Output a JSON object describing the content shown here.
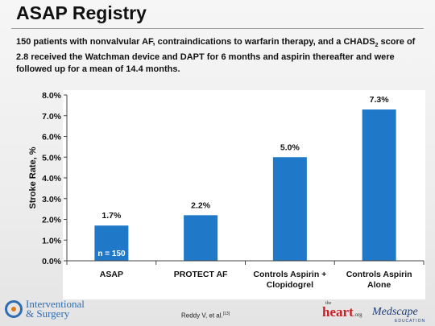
{
  "slide": {
    "title": "ASAP Registry",
    "subtitle_parts": {
      "p1": "150 patients with nonvalvular AF, contraindications to warfarin therapy, and a CHADS",
      "sub": "2",
      "p2": " score of 2.8 received the Watchman device and DAPT for 6 months and aspirin thereafter and were followed up for a mean of 14.4 months."
    }
  },
  "chart_data": {
    "type": "bar",
    "categories": [
      "ASAP",
      "PROTECT AF",
      "Controls Aspirin + Clopidogrel",
      "Controls Aspirin Alone"
    ],
    "category_lines": [
      [
        "ASAP"
      ],
      [
        "PROTECT AF"
      ],
      [
        "Controls Aspirin +",
        "Clopidogrel"
      ],
      [
        "Controls Aspirin",
        "Alone"
      ]
    ],
    "values": [
      1.7,
      2.2,
      5.0,
      7.3
    ],
    "data_labels": [
      "1.7%",
      "2.2%",
      "5.0%",
      "7.3%"
    ],
    "ylabel": "Stroke Rate, %",
    "ylim": [
      0,
      8
    ],
    "yticks": [
      0,
      1,
      2,
      3,
      4,
      5,
      6,
      7,
      8
    ],
    "ytick_labels": [
      "0.0%",
      "1.0%",
      "2.0%",
      "3.0%",
      "4.0%",
      "5.0%",
      "6.0%",
      "7.0%",
      "8.0%"
    ],
    "bar_annotation": "n = 150",
    "bar_color": "#1f78c8",
    "grid": false
  },
  "footer": {
    "logo_line1": "Interventional",
    "logo_line2": "& Surgery",
    "citation": "Reddy V, et al.",
    "citation_ref": "[13]",
    "heart_small": "the",
    "heart_main": "heart",
    "heart_org": ".org",
    "medscape": "Medscape",
    "medscape_sub": "EDUCATION"
  }
}
